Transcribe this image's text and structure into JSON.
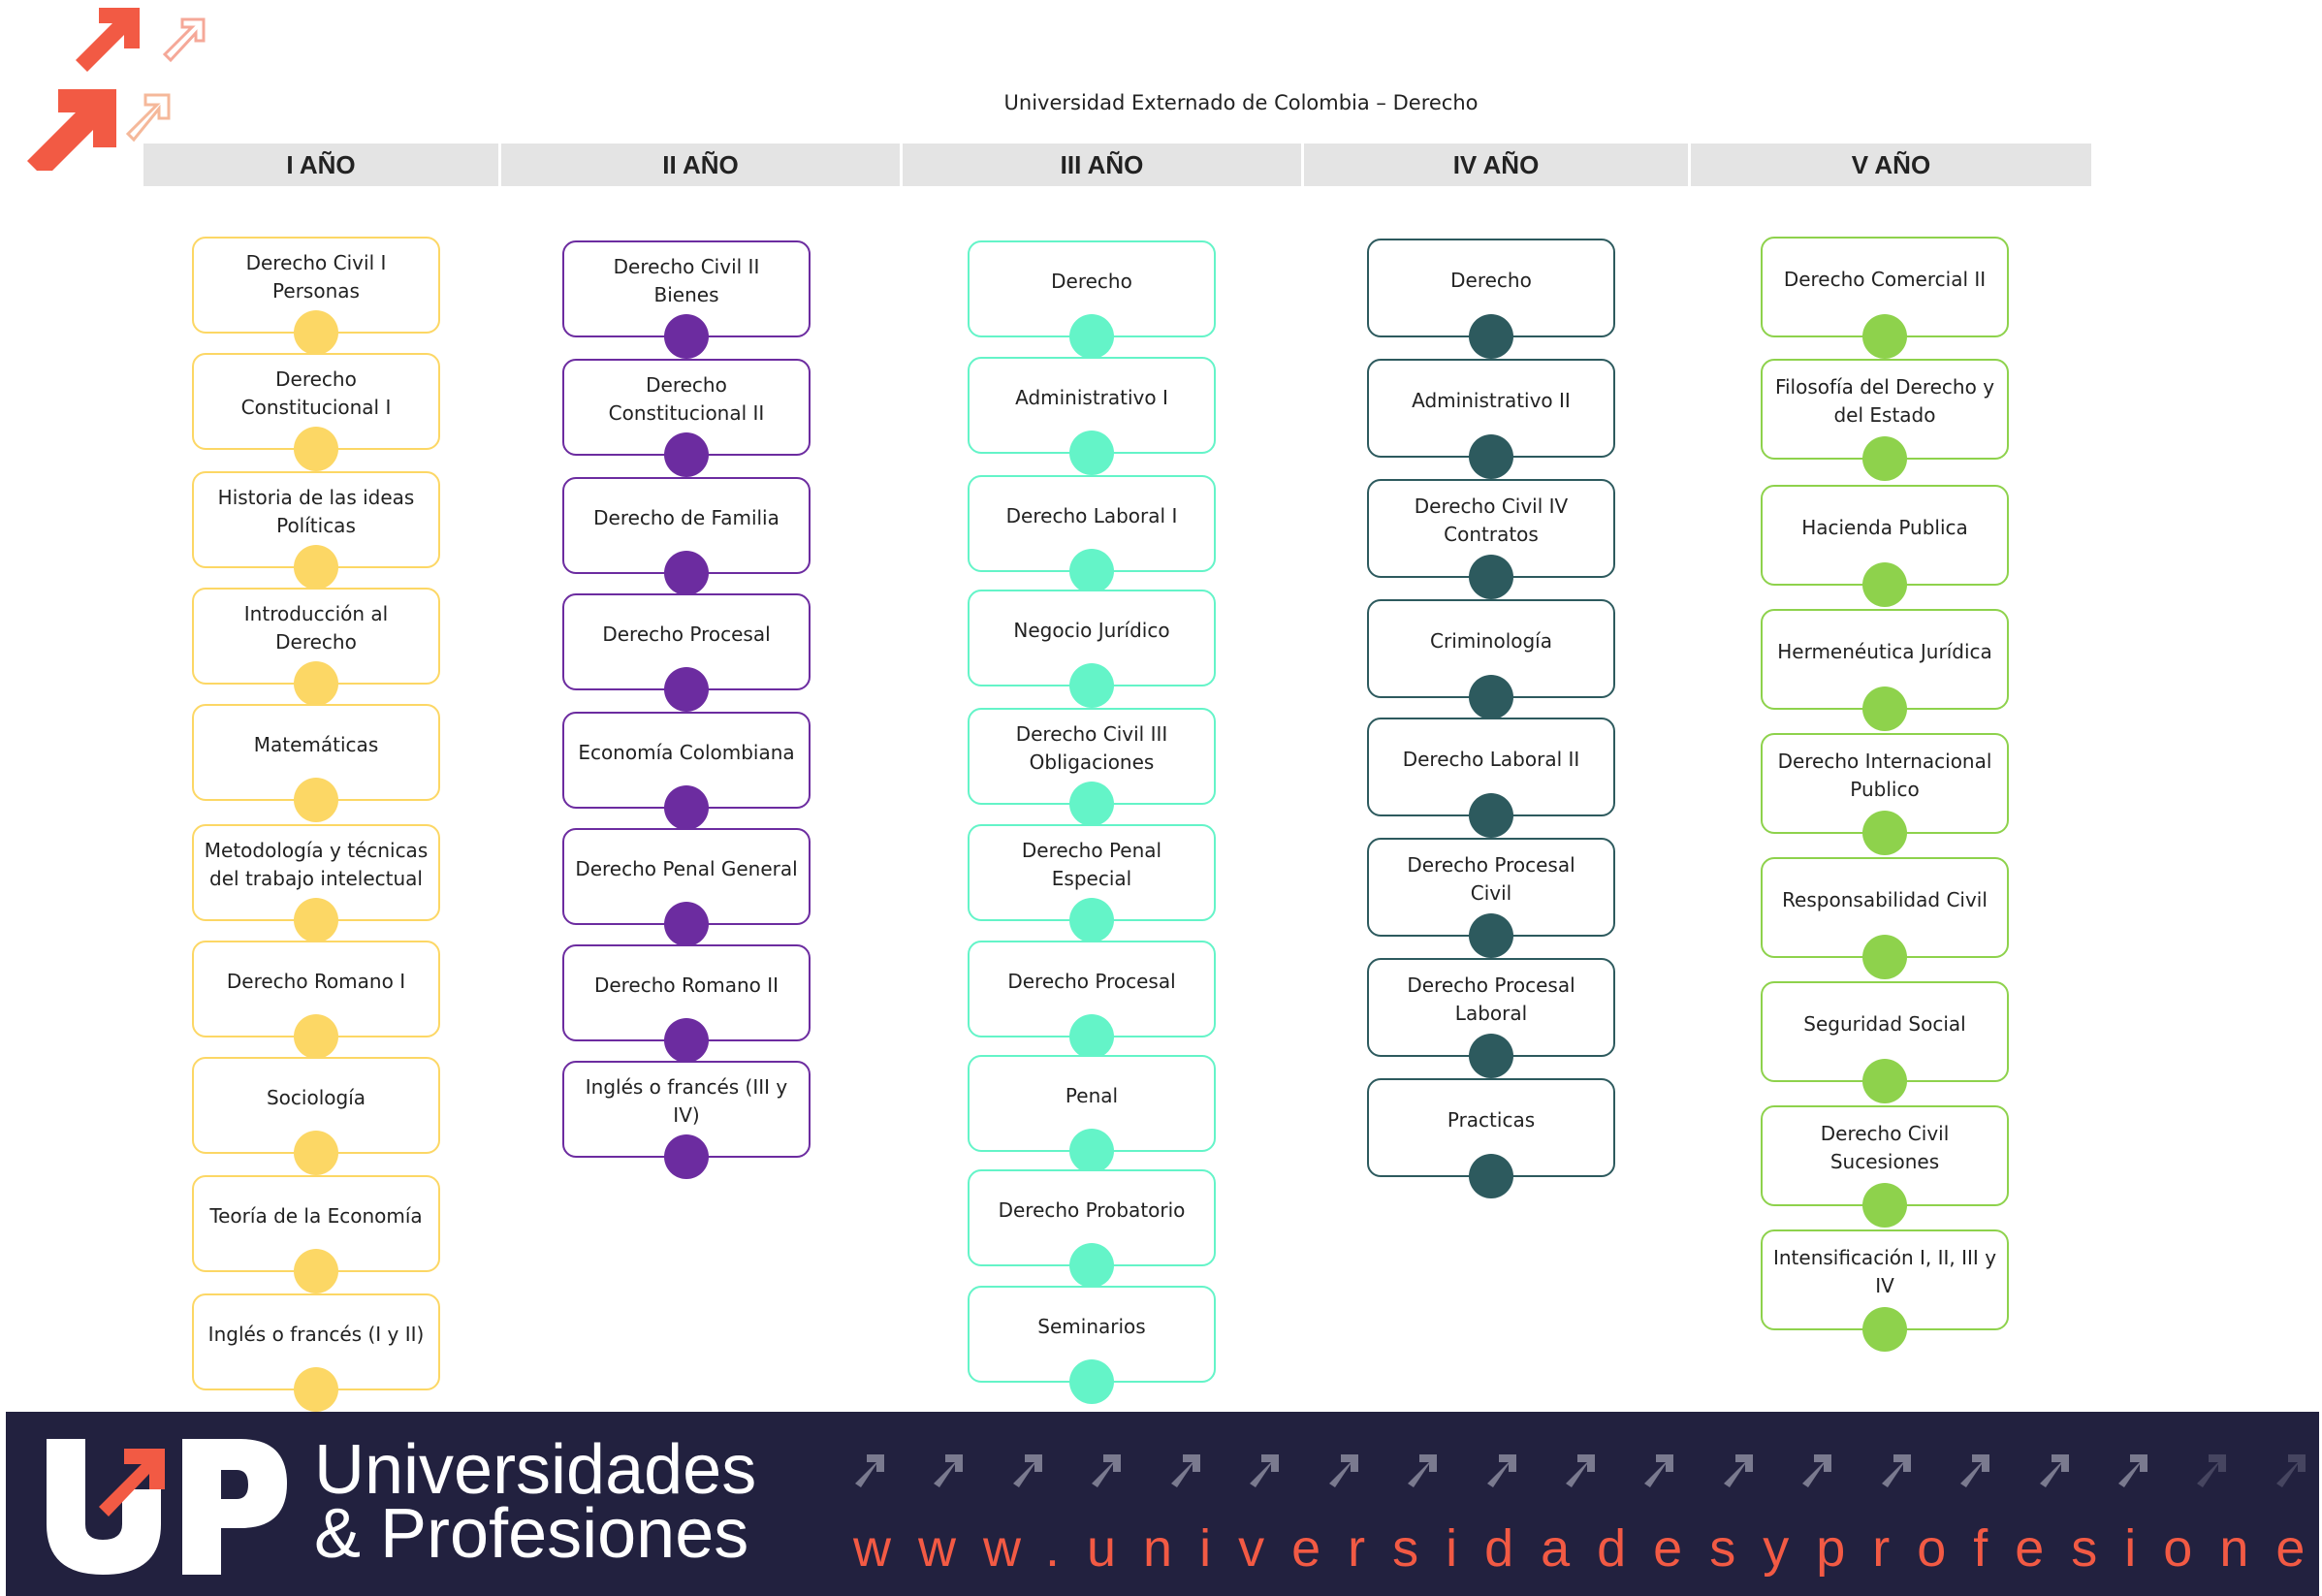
{
  "header": {
    "title": "Universidad Externado de Colombia –  Derecho"
  },
  "years": [
    {
      "label": "I AÑO"
    },
    {
      "label": "II  AÑO"
    },
    {
      "label": "III  AÑO"
    },
    {
      "label": "IV AÑO"
    },
    {
      "label": "V  AÑO"
    }
  ],
  "colors": {
    "year1": "#fcd765",
    "year2": "#6c2ca0",
    "year3": "#64f4c8",
    "year4": "#2d5a5e",
    "year5": "#8ed24c",
    "accent": "#f25a44",
    "footer_bg": "#22213f"
  },
  "courses": {
    "year1": [
      "Derecho Civil I\nPersonas",
      "Derecho\nConstitucional I",
      "Historia de las ideas\nPolíticas",
      "Introducción al Derecho",
      "Matemáticas",
      "Metodología y técnicas\ndel trabajo intelectual",
      "Derecho Romano I",
      "Sociología",
      "Teoría de la Economía",
      "Inglés o francés (I y II)"
    ],
    "year2": [
      "Derecho Civil II\nBienes",
      "Derecho\nConstitucional II",
      "Derecho de Familia",
      "Derecho Procesal",
      "Economía Colombiana",
      "Derecho Penal General",
      "Derecho Romano II",
      "Inglés o francés (III y\nIV)"
    ],
    "year3": [
      "Derecho",
      "Administrativo I",
      "Derecho Laboral I",
      "Negocio Jurídico",
      "Derecho Civil III\nObligaciones",
      "Derecho Penal Especial",
      "Derecho Procesal",
      "Penal",
      "Derecho Probatorio",
      "Seminarios"
    ],
    "year4": [
      "Derecho",
      "Administrativo II",
      "Derecho Civil IV\nContratos",
      "Criminología",
      "Derecho Laboral II",
      "Derecho Procesal\nCivil",
      "Derecho Procesal\nLaboral",
      "Practicas"
    ],
    "year5": [
      "Derecho Comercial II",
      "Filosofía del Derecho y\ndel Estado",
      "Hacienda Publica",
      "Hermenéutica Jurídica",
      "Derecho Internacional\nPublico",
      "Responsabilidad Civil",
      "Seguridad Social",
      "Derecho Civil Sucesiones",
      "Intensificación I, II, III y IV"
    ]
  },
  "footer": {
    "brand_line1": "Universidades",
    "brand_line2": "& Profesiones",
    "website": "www.universidadesyprofesiones.com"
  }
}
